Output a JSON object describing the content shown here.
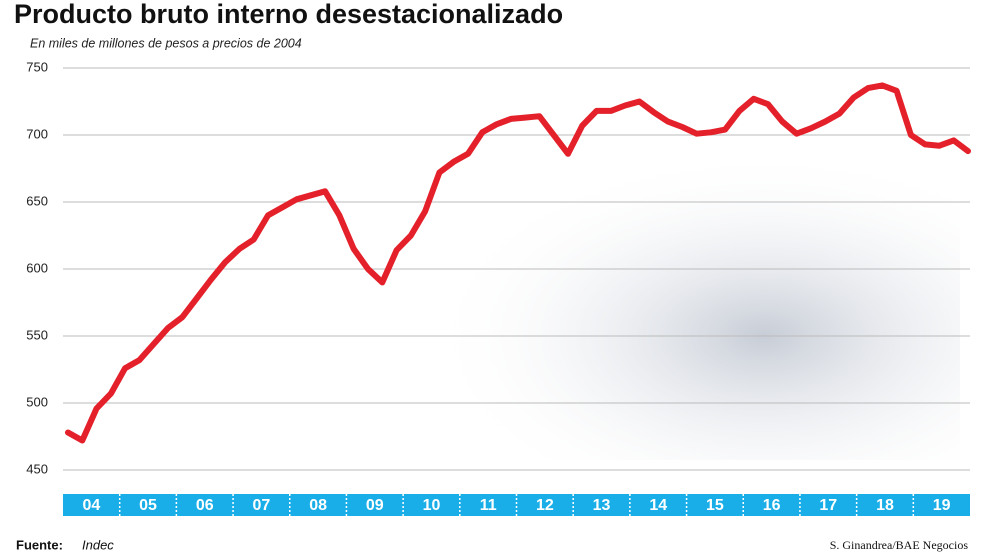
{
  "chart_data": {
    "type": "line",
    "title": "Producto bruto interno desestacionalizado",
    "subtitle": "En miles de millones de pesos a precios de 2004",
    "categories": [
      "04",
      null,
      null,
      null,
      "05",
      null,
      null,
      null,
      "06",
      null,
      null,
      null,
      "07",
      null,
      null,
      null,
      "08",
      null,
      null,
      null,
      "09",
      null,
      null,
      null,
      "10",
      null,
      null,
      null,
      "11",
      null,
      null,
      null,
      "12",
      null,
      null,
      null,
      "13",
      null,
      null,
      null,
      "14",
      null,
      null,
      null,
      "15",
      null,
      null,
      null,
      "16",
      null,
      null,
      null,
      "17",
      null,
      null,
      null,
      "18",
      null,
      null,
      null,
      "19",
      null,
      null,
      null
    ],
    "series": [
      {
        "name": "PBI",
        "color": "#e4212b",
        "values": [
          478,
          472,
          496,
          507,
          526,
          532,
          544,
          556,
          564,
          578,
          592,
          605,
          615,
          622,
          640,
          646,
          652,
          655,
          658,
          640,
          615,
          600,
          590,
          614,
          625,
          643,
          672,
          680,
          686,
          702,
          708,
          712,
          713,
          714,
          700,
          686,
          707,
          718,
          718,
          722,
          725,
          717,
          710,
          706,
          701,
          702,
          704,
          718,
          727,
          723,
          710,
          701,
          705,
          710,
          716,
          728,
          735,
          737,
          733,
          700,
          693,
          692,
          696,
          688
        ]
      }
    ],
    "ylim": [
      450,
      750
    ],
    "yticks": [
      450,
      500,
      550,
      600,
      650,
      700,
      750
    ],
    "grid": true,
    "band_color": "#19aee8",
    "source_label": "Fuente:",
    "source": "Indec",
    "credit": "S. Ginandrea/BAE Negocios"
  }
}
